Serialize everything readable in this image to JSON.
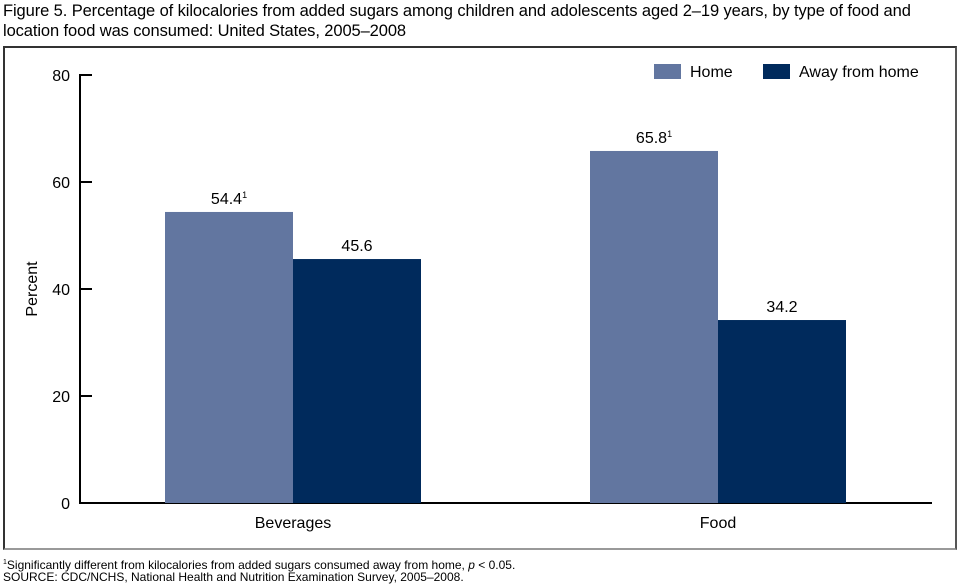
{
  "chart_data": {
    "type": "bar",
    "title": "Figure 5. Percentage of kilocalories from added sugars among children and adolescents aged 2–19 years, by type of food and location food was consumed: United States, 2005–2008",
    "xlabel": "",
    "ylabel": "Percent",
    "ylim": [
      0,
      80
    ],
    "yticks": [
      0,
      20,
      40,
      60,
      80
    ],
    "grid": false,
    "legend_position": "top-right",
    "categories": [
      "Beverages",
      "Food"
    ],
    "series": [
      {
        "name": "Home",
        "color": "#6276a0",
        "values": [
          54.4,
          65.8
        ],
        "labels": [
          "54.4",
          "65.8"
        ],
        "superscripts": [
          "1",
          "1"
        ]
      },
      {
        "name": "Away from home",
        "color": "#002a5c",
        "values": [
          45.6,
          34.2
        ],
        "labels": [
          "45.6",
          "34.2"
        ],
        "superscripts": [
          "",
          ""
        ]
      }
    ]
  },
  "footnotes": {
    "note1_marker": "1",
    "note1_text_before": "Significantly different from kilocalories from added sugars consumed away from home, ",
    "note1_p": "p",
    "note1_text_after": " < 0.05.",
    "source": "SOURCE: CDC/NCHS, National Health and Nutrition Examination Survey, 2005–2008."
  }
}
